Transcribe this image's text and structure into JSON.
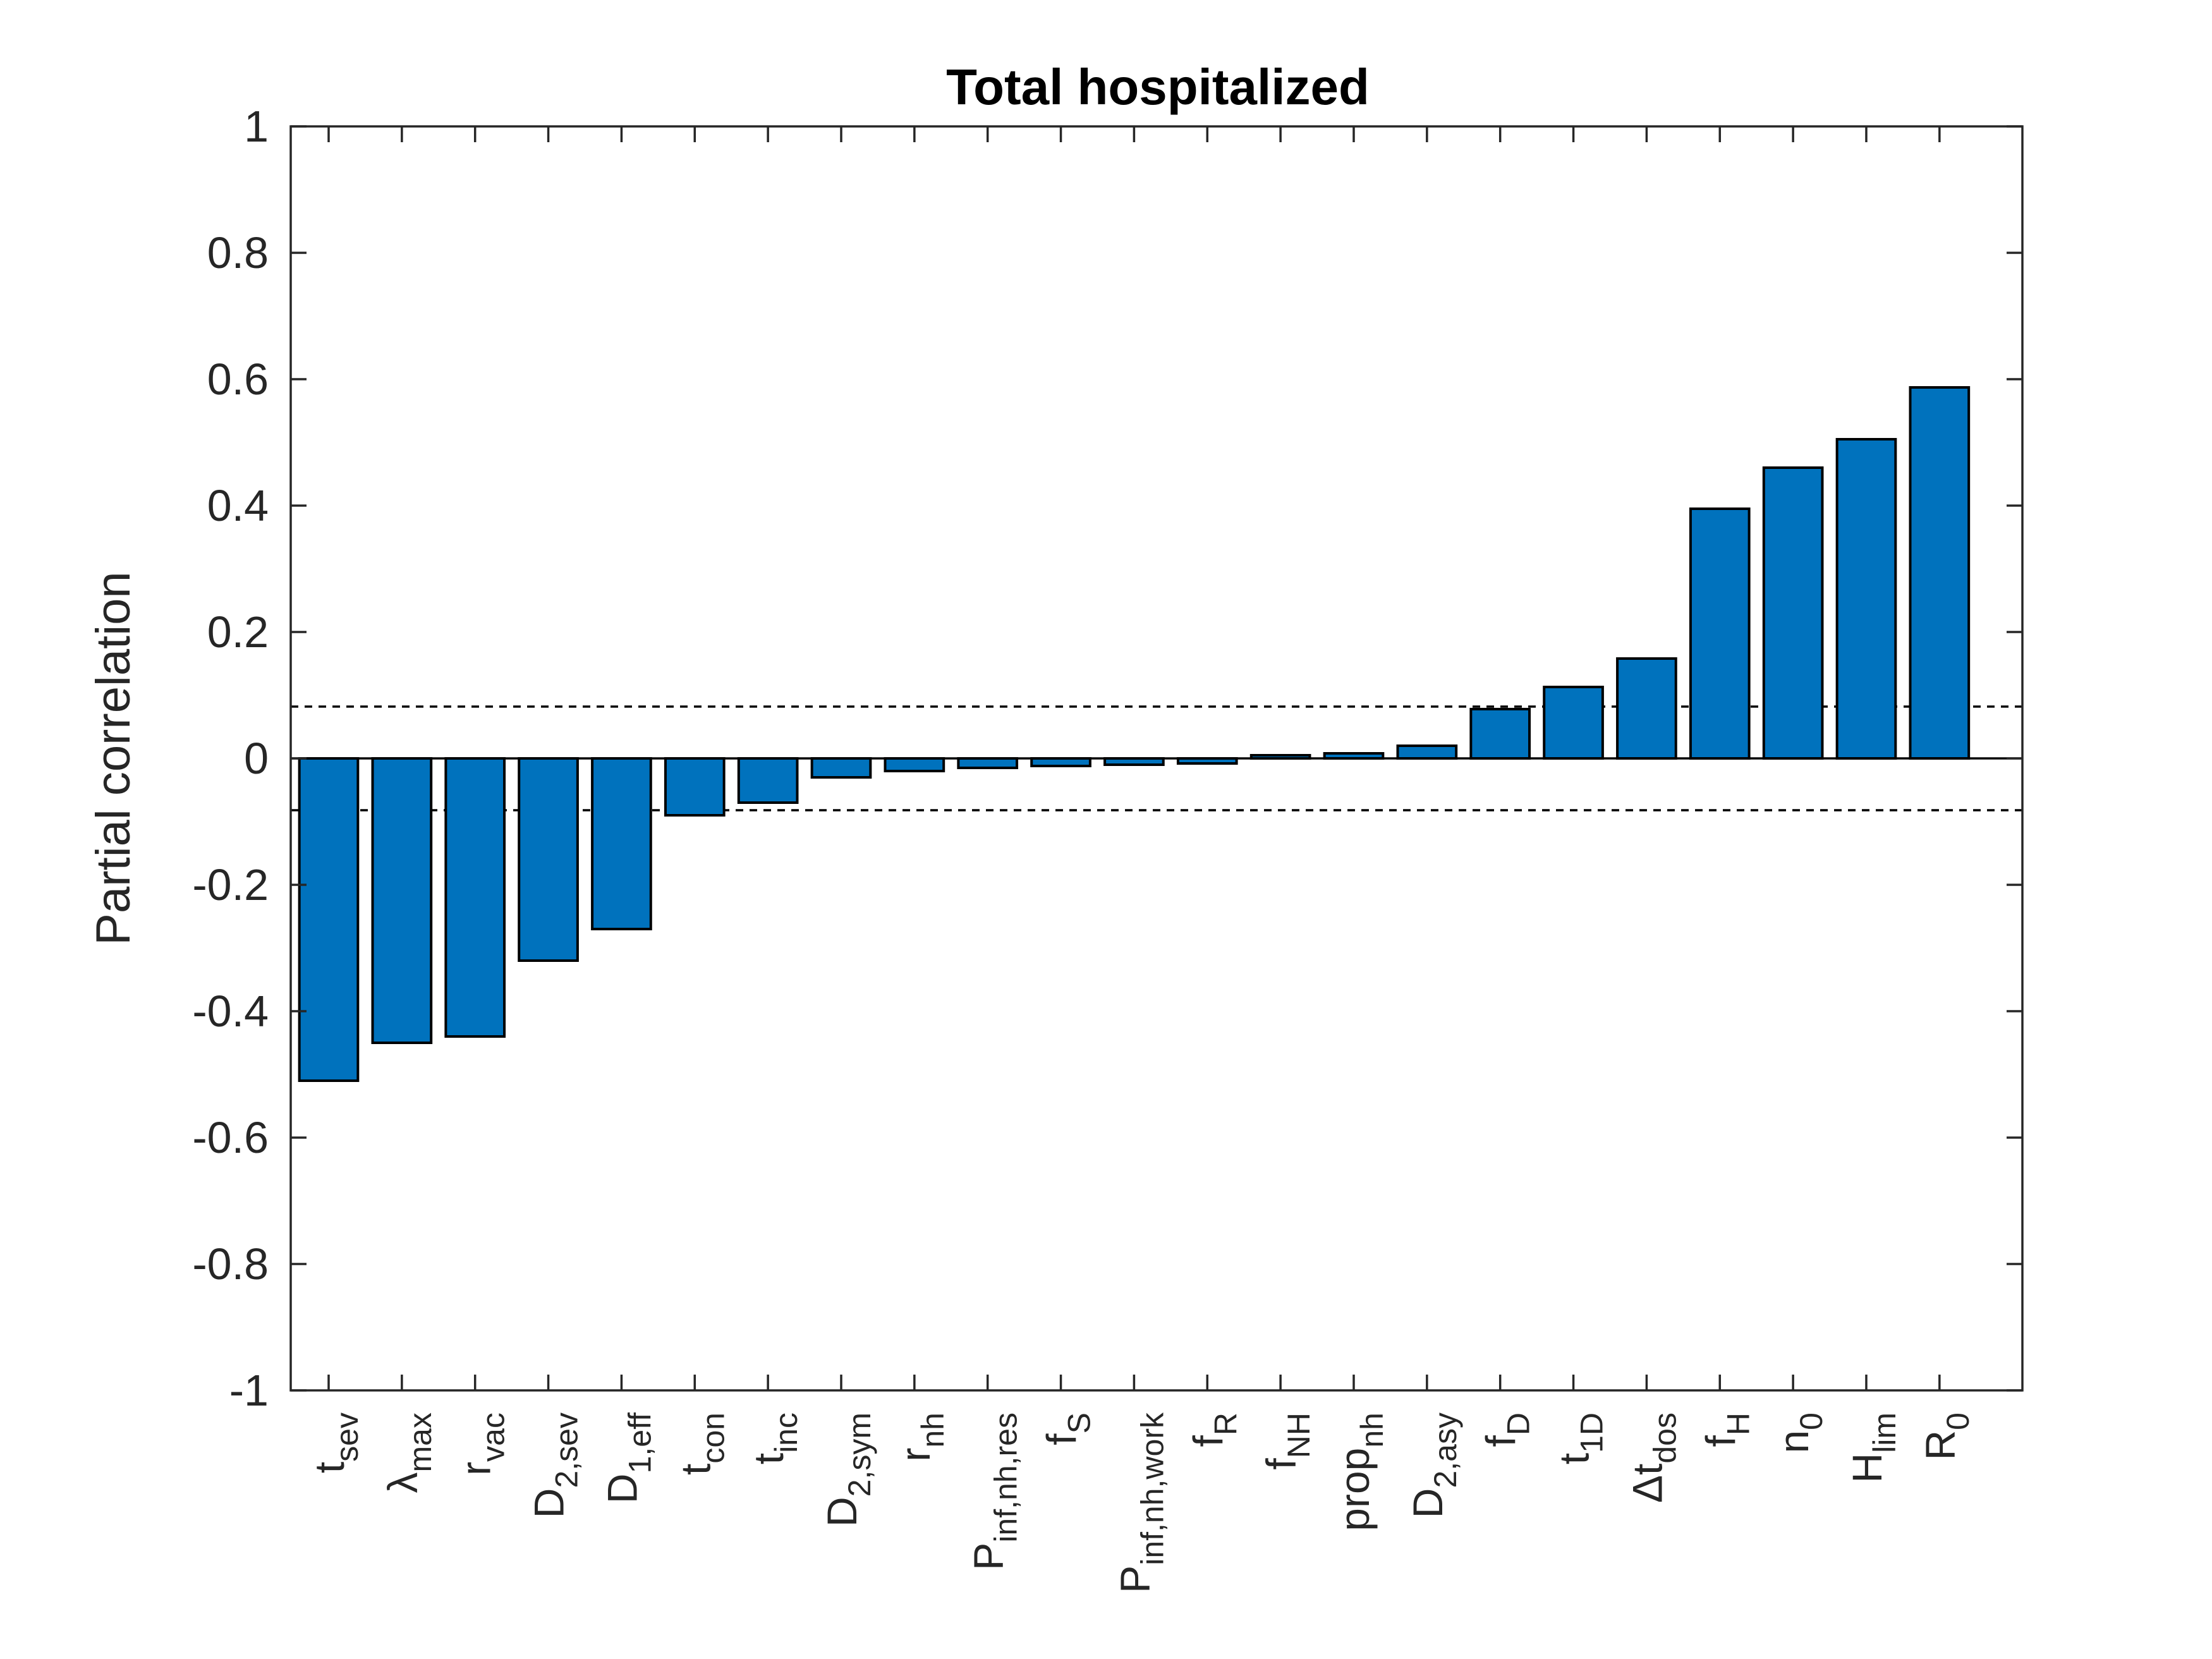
{
  "chart_data": {
    "type": "bar",
    "title": "Total hospitalized",
    "xlabel": "",
    "ylabel": "Partial correlation",
    "ylim": [
      -1,
      1
    ],
    "yticks": [
      "1",
      "0.8",
      "0.6",
      "0.4",
      "0.2",
      "0",
      "-0.2",
      "-0.4",
      "-0.6",
      "-0.8",
      "-1"
    ],
    "ytick_values": [
      1,
      0.8,
      0.6,
      0.4,
      0.2,
      0,
      -0.2,
      -0.4,
      -0.6,
      -0.8,
      -1
    ],
    "threshold": 0.082,
    "bar_color": "#0072BD",
    "grid": false,
    "categories": [
      {
        "base": "t",
        "sub": "sev"
      },
      {
        "base": "λ",
        "sub": "max"
      },
      {
        "base": "r",
        "sub": "vac"
      },
      {
        "base": "D",
        "sub": "2,sev"
      },
      {
        "base": "D",
        "sub": "1,eff"
      },
      {
        "base": "t",
        "sub": "con"
      },
      {
        "base": "t",
        "sub": "inc"
      },
      {
        "base": "D",
        "sub": "2,sym"
      },
      {
        "base": "r",
        "sub": "nh"
      },
      {
        "base": "P",
        "sub": "inf,nh,res"
      },
      {
        "base": "f",
        "sub": "S"
      },
      {
        "base": "P",
        "sub": "inf,nh,work"
      },
      {
        "base": "f",
        "sub": "R"
      },
      {
        "base": "f",
        "sub": "NH"
      },
      {
        "base": "prop",
        "sub": "nh"
      },
      {
        "base": "D",
        "sub": "2,asy"
      },
      {
        "base": "f",
        "sub": "D"
      },
      {
        "base": "t",
        "sub": "1D"
      },
      {
        "base": "Δt",
        "sub": "dos"
      },
      {
        "base": "f",
        "sub": "H"
      },
      {
        "base": "n",
        "sub": "0"
      },
      {
        "base": "H",
        "sub": "lim"
      },
      {
        "base": "R",
        "sub": "0"
      }
    ],
    "values": [
      -0.51,
      -0.45,
      -0.44,
      -0.32,
      -0.27,
      -0.09,
      -0.07,
      -0.03,
      -0.02,
      -0.015,
      -0.012,
      -0.01,
      -0.008,
      0.005,
      0.008,
      0.02,
      0.078,
      0.113,
      0.158,
      0.395,
      0.46,
      0.505,
      0.587
    ]
  }
}
